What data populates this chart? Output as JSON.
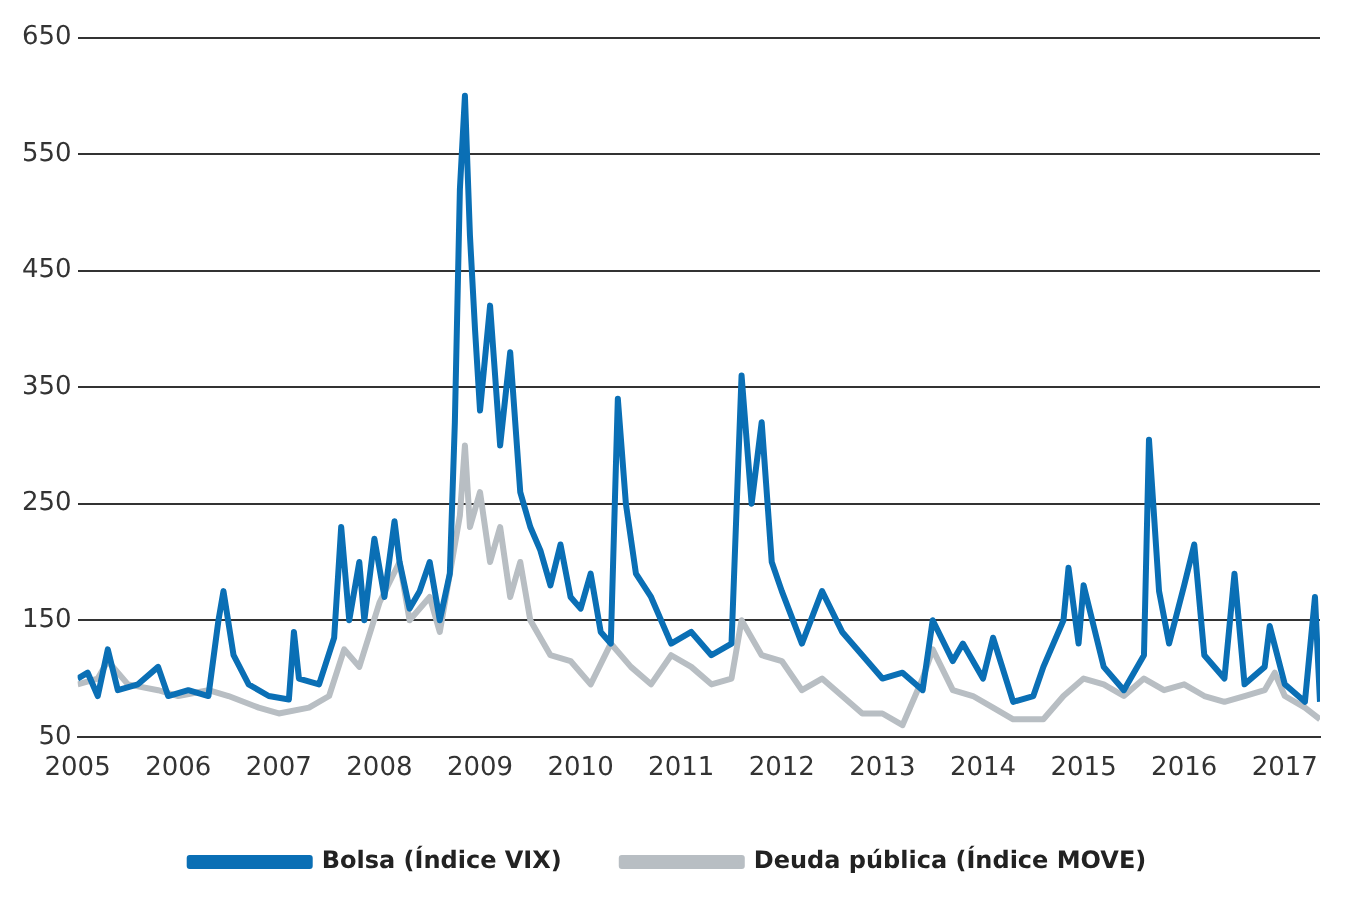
{
  "chart_data": {
    "type": "line",
    "xlim": [
      2005,
      2017.35
    ],
    "xticks": [
      2005,
      2006,
      2007,
      2008,
      2009,
      2010,
      2011,
      2012,
      2013,
      2014,
      2015,
      2016,
      2017
    ],
    "ylim": [
      50,
      650
    ],
    "yticks": [
      50,
      150,
      250,
      350,
      450,
      550,
      650
    ],
    "grid": "y",
    "legend": "bottom",
    "marker": "none",
    "line_style": "solid",
    "series": [
      {
        "name": "Bolsa (Índice VIX)",
        "color": "#0a6fb5",
        "x": [
          2005.0,
          2005.1,
          2005.2,
          2005.3,
          2005.4,
          2005.6,
          2005.8,
          2005.9,
          2006.1,
          2006.3,
          2006.4,
          2006.45,
          2006.55,
          2006.7,
          2006.9,
          2007.1,
          2007.15,
          2007.2,
          2007.4,
          2007.55,
          2007.62,
          2007.7,
          2007.8,
          2007.85,
          2007.95,
          2008.05,
          2008.15,
          2008.2,
          2008.3,
          2008.4,
          2008.5,
          2008.6,
          2008.7,
          2008.75,
          2008.8,
          2008.85,
          2008.9,
          2008.95,
          2009.0,
          2009.1,
          2009.2,
          2009.3,
          2009.4,
          2009.5,
          2009.6,
          2009.7,
          2009.8,
          2009.9,
          2010.0,
          2010.1,
          2010.2,
          2010.3,
          2010.37,
          2010.45,
          2010.55,
          2010.7,
          2010.9,
          2011.1,
          2011.3,
          2011.5,
          2011.6,
          2011.7,
          2011.8,
          2011.9,
          2012.0,
          2012.2,
          2012.4,
          2012.6,
          2012.8,
          2013.0,
          2013.2,
          2013.4,
          2013.5,
          2013.7,
          2013.8,
          2014.0,
          2014.1,
          2014.3,
          2014.5,
          2014.6,
          2014.8,
          2014.85,
          2014.95,
          2015.0,
          2015.2,
          2015.4,
          2015.6,
          2015.65,
          2015.75,
          2015.85,
          2016.0,
          2016.1,
          2016.2,
          2016.4,
          2016.5,
          2016.6,
          2016.8,
          2016.85,
          2017.0,
          2017.2,
          2017.3,
          2017.35
        ],
        "values": [
          100,
          105,
          85,
          125,
          90,
          95,
          110,
          85,
          90,
          85,
          150,
          175,
          120,
          95,
          85,
          82,
          140,
          100,
          95,
          135,
          230,
          150,
          200,
          150,
          220,
          170,
          235,
          200,
          160,
          175,
          200,
          150,
          190,
          320,
          520,
          600,
          480,
          400,
          330,
          420,
          300,
          380,
          260,
          230,
          210,
          180,
          215,
          170,
          160,
          190,
          140,
          130,
          340,
          250,
          190,
          170,
          130,
          140,
          120,
          130,
          360,
          250,
          320,
          200,
          175,
          130,
          175,
          140,
          120,
          100,
          105,
          90,
          150,
          115,
          130,
          100,
          135,
          80,
          85,
          110,
          150,
          195,
          130,
          180,
          110,
          90,
          120,
          305,
          175,
          130,
          180,
          215,
          120,
          100,
          190,
          95,
          110,
          145,
          95,
          80,
          170,
          80
        ]
      },
      {
        "name": "Deuda pública (Índice MOVE)",
        "color": "#b8bec3",
        "x": [
          2005.0,
          2005.2,
          2005.3,
          2005.5,
          2005.8,
          2006.0,
          2006.3,
          2006.5,
          2006.8,
          2007.0,
          2007.3,
          2007.5,
          2007.65,
          2007.8,
          2008.0,
          2008.2,
          2008.3,
          2008.5,
          2008.6,
          2008.8,
          2008.85,
          2008.9,
          2009.0,
          2009.1,
          2009.2,
          2009.3,
          2009.4,
          2009.5,
          2009.7,
          2009.9,
          2010.1,
          2010.3,
          2010.5,
          2010.7,
          2010.9,
          2011.1,
          2011.3,
          2011.5,
          2011.6,
          2011.8,
          2012.0,
          2012.2,
          2012.4,
          2012.6,
          2012.8,
          2013.0,
          2013.2,
          2013.4,
          2013.5,
          2013.7,
          2013.9,
          2014.1,
          2014.3,
          2014.6,
          2014.8,
          2015.0,
          2015.2,
          2015.4,
          2015.6,
          2015.8,
          2016.0,
          2016.2,
          2016.4,
          2016.6,
          2016.8,
          2016.9,
          2017.0,
          2017.2,
          2017.35
        ],
        "values": [
          95,
          100,
          115,
          95,
          90,
          85,
          90,
          85,
          75,
          70,
          75,
          85,
          125,
          110,
          165,
          200,
          150,
          170,
          140,
          240,
          300,
          230,
          260,
          200,
          230,
          170,
          200,
          150,
          120,
          115,
          95,
          130,
          110,
          95,
          120,
          110,
          95,
          100,
          150,
          120,
          115,
          90,
          100,
          85,
          70,
          70,
          60,
          100,
          125,
          90,
          85,
          75,
          65,
          65,
          85,
          100,
          95,
          85,
          100,
          90,
          95,
          85,
          80,
          85,
          90,
          105,
          85,
          75,
          65
        ]
      }
    ]
  }
}
